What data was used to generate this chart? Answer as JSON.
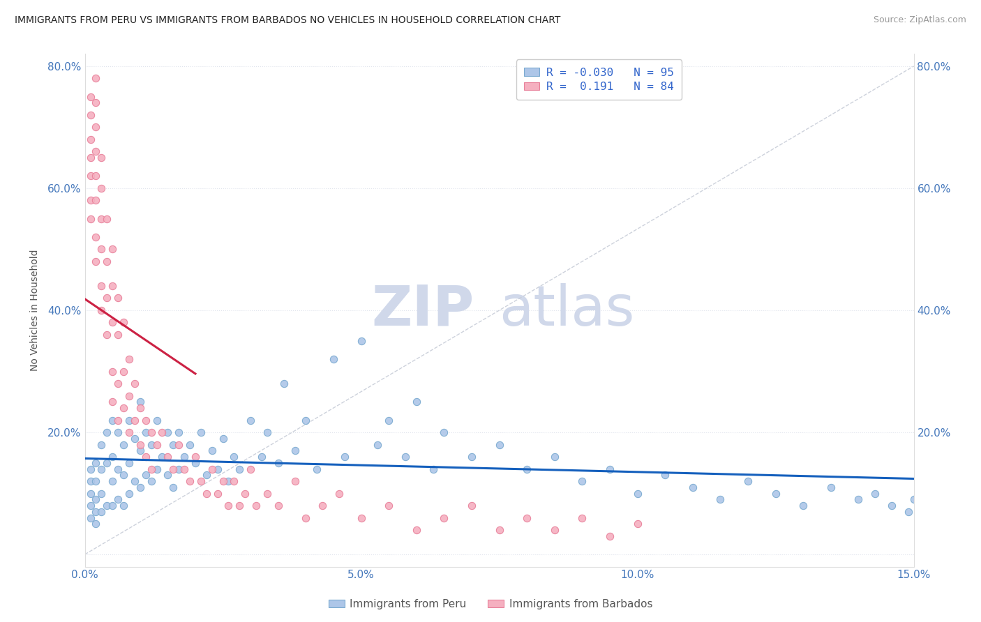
{
  "title": "IMMIGRANTS FROM PERU VS IMMIGRANTS FROM BARBADOS NO VEHICLES IN HOUSEHOLD CORRELATION CHART",
  "source": "Source: ZipAtlas.com",
  "ylabel": "No Vehicles in Household",
  "xlim": [
    0.0,
    0.15
  ],
  "ylim": [
    -0.02,
    0.82
  ],
  "xticks": [
    0.0,
    0.05,
    0.1,
    0.15
  ],
  "xtick_labels": [
    "0.0%",
    "5.0%",
    "10.0%",
    "15.0%"
  ],
  "yticks": [
    0.0,
    0.2,
    0.4,
    0.6,
    0.8
  ],
  "ytick_labels": [
    "",
    "20.0%",
    "40.0%",
    "60.0%",
    "80.0%"
  ],
  "peru_color": "#adc6e8",
  "barbados_color": "#f5b0c0",
  "peru_edge": "#7aaad0",
  "barbados_edge": "#e8809a",
  "trend_peru_color": "#1560bd",
  "trend_barbados_color": "#cc2244",
  "ref_line_color": "#c8cdd8",
  "watermark": "ZIPatlas",
  "watermark_peru": "ZIP",
  "watermark_atlas": "atlas",
  "watermark_color": "#d0d8ea",
  "peru_R": -0.03,
  "peru_N": 95,
  "barbados_R": 0.191,
  "barbados_N": 84,
  "legend_label_peru": "Immigrants from Peru",
  "legend_label_barbados": "Immigrants from Barbados",
  "peru_x": [
    0.001,
    0.001,
    0.001,
    0.001,
    0.001,
    0.002,
    0.002,
    0.002,
    0.002,
    0.002,
    0.003,
    0.003,
    0.003,
    0.003,
    0.004,
    0.004,
    0.004,
    0.005,
    0.005,
    0.005,
    0.005,
    0.006,
    0.006,
    0.006,
    0.007,
    0.007,
    0.007,
    0.008,
    0.008,
    0.008,
    0.009,
    0.009,
    0.01,
    0.01,
    0.01,
    0.011,
    0.011,
    0.012,
    0.012,
    0.013,
    0.013,
    0.014,
    0.015,
    0.015,
    0.016,
    0.016,
    0.017,
    0.017,
    0.018,
    0.019,
    0.02,
    0.021,
    0.022,
    0.023,
    0.024,
    0.025,
    0.026,
    0.027,
    0.028,
    0.03,
    0.032,
    0.033,
    0.035,
    0.036,
    0.038,
    0.04,
    0.042,
    0.045,
    0.047,
    0.05,
    0.053,
    0.055,
    0.058,
    0.06,
    0.063,
    0.065,
    0.07,
    0.075,
    0.08,
    0.085,
    0.09,
    0.095,
    0.1,
    0.105,
    0.11,
    0.115,
    0.12,
    0.125,
    0.13,
    0.135,
    0.14,
    0.143,
    0.146,
    0.149,
    0.15
  ],
  "peru_y": [
    0.12,
    0.14,
    0.1,
    0.08,
    0.06,
    0.15,
    0.12,
    0.09,
    0.07,
    0.05,
    0.18,
    0.14,
    0.1,
    0.07,
    0.2,
    0.15,
    0.08,
    0.22,
    0.16,
    0.12,
    0.08,
    0.2,
    0.14,
    0.09,
    0.18,
    0.13,
    0.08,
    0.22,
    0.15,
    0.1,
    0.19,
    0.12,
    0.25,
    0.17,
    0.11,
    0.2,
    0.13,
    0.18,
    0.12,
    0.22,
    0.14,
    0.16,
    0.2,
    0.13,
    0.18,
    0.11,
    0.2,
    0.14,
    0.16,
    0.18,
    0.15,
    0.2,
    0.13,
    0.17,
    0.14,
    0.19,
    0.12,
    0.16,
    0.14,
    0.22,
    0.16,
    0.2,
    0.15,
    0.28,
    0.17,
    0.22,
    0.14,
    0.32,
    0.16,
    0.35,
    0.18,
    0.22,
    0.16,
    0.25,
    0.14,
    0.2,
    0.16,
    0.18,
    0.14,
    0.16,
    0.12,
    0.14,
    0.1,
    0.13,
    0.11,
    0.09,
    0.12,
    0.1,
    0.08,
    0.11,
    0.09,
    0.1,
    0.08,
    0.07,
    0.09
  ],
  "barbados_x": [
    0.001,
    0.001,
    0.001,
    0.001,
    0.001,
    0.001,
    0.001,
    0.002,
    0.002,
    0.002,
    0.002,
    0.002,
    0.002,
    0.002,
    0.002,
    0.003,
    0.003,
    0.003,
    0.003,
    0.003,
    0.003,
    0.004,
    0.004,
    0.004,
    0.004,
    0.005,
    0.005,
    0.005,
    0.005,
    0.005,
    0.006,
    0.006,
    0.006,
    0.006,
    0.007,
    0.007,
    0.007,
    0.008,
    0.008,
    0.008,
    0.009,
    0.009,
    0.01,
    0.01,
    0.011,
    0.011,
    0.012,
    0.012,
    0.013,
    0.014,
    0.015,
    0.016,
    0.017,
    0.018,
    0.019,
    0.02,
    0.021,
    0.022,
    0.023,
    0.024,
    0.025,
    0.026,
    0.027,
    0.028,
    0.029,
    0.03,
    0.031,
    0.033,
    0.035,
    0.038,
    0.04,
    0.043,
    0.046,
    0.05,
    0.055,
    0.06,
    0.065,
    0.07,
    0.075,
    0.08,
    0.085,
    0.09,
    0.095,
    0.1
  ],
  "barbados_y": [
    0.75,
    0.72,
    0.68,
    0.65,
    0.62,
    0.58,
    0.55,
    0.78,
    0.74,
    0.7,
    0.66,
    0.62,
    0.58,
    0.52,
    0.48,
    0.65,
    0.6,
    0.55,
    0.5,
    0.44,
    0.4,
    0.55,
    0.48,
    0.42,
    0.36,
    0.5,
    0.44,
    0.38,
    0.3,
    0.25,
    0.42,
    0.36,
    0.28,
    0.22,
    0.38,
    0.3,
    0.24,
    0.32,
    0.26,
    0.2,
    0.28,
    0.22,
    0.24,
    0.18,
    0.22,
    0.16,
    0.2,
    0.14,
    0.18,
    0.2,
    0.16,
    0.14,
    0.18,
    0.14,
    0.12,
    0.16,
    0.12,
    0.1,
    0.14,
    0.1,
    0.12,
    0.08,
    0.12,
    0.08,
    0.1,
    0.14,
    0.08,
    0.1,
    0.08,
    0.12,
    0.06,
    0.08,
    0.1,
    0.06,
    0.08,
    0.04,
    0.06,
    0.08,
    0.04,
    0.06,
    0.04,
    0.06,
    0.03,
    0.05
  ]
}
